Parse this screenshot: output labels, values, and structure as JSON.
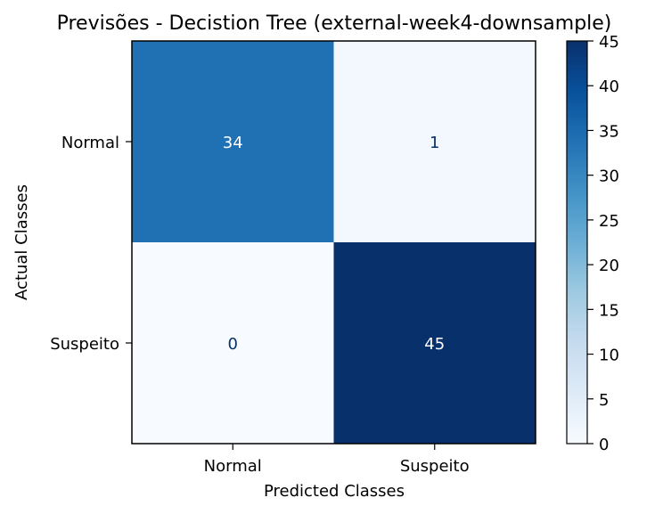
{
  "chart_data": {
    "type": "heatmap",
    "title": "Previsões - Decistion Tree (external-week4-downsample)",
    "xlabel": "Predicted Classes",
    "ylabel": "Actual Classes",
    "x_categories": [
      "Normal",
      "Suspeito"
    ],
    "y_categories": [
      "Normal",
      "Suspeito"
    ],
    "matrix": [
      [
        34,
        1
      ],
      [
        0,
        45
      ]
    ],
    "colormap": "Blues",
    "vmin": 0,
    "vmax": 45,
    "colorbar_ticks": [
      0,
      5,
      10,
      15,
      20,
      25,
      30,
      35,
      40,
      45
    ]
  }
}
